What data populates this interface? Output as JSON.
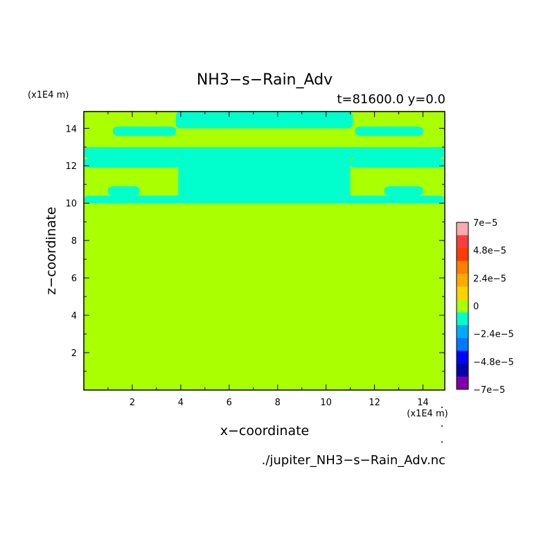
{
  "chart_data": {
    "type": "heatmap",
    "title": "NH3−s−Rain_Adv",
    "subtitle": "t=81600.0 y=0.0",
    "xlabel": "x−coordinate",
    "ylabel": "z−coordinate",
    "x_unit": "(x1E4 m)",
    "y_unit": "(x1E4 m)",
    "source_file": "./jupiter_NH3−s−Rain_Adv.nc",
    "xlim": [
      0,
      14.9
    ],
    "ylim": [
      0,
      14.9
    ],
    "x_ticks": [
      2,
      4,
      6,
      8,
      10,
      12,
      14
    ],
    "y_ticks": [
      2,
      4,
      6,
      8,
      10,
      12,
      14
    ],
    "grid": false,
    "background_color": "#aaff00",
    "colorbar": {
      "labels": [
        "7e−5",
        "4.8e−5",
        "2.4e−5",
        "0",
        "−2.4e−5",
        "−4.8e−5",
        "−7e−5"
      ],
      "colors_top_to_bottom": [
        "#ffaaaa",
        "#ff3c3c",
        "#ff3c00",
        "#ff7f00",
        "#ffaa00",
        "#ffd200",
        "#aaff00",
        "#00ffcc",
        "#00aaff",
        "#0078ff",
        "#0000ff",
        "#0000aa",
        "#7f00aa"
      ]
    },
    "regions": [
      {
        "value_class": "slightly negative",
        "color": "#00ffcc",
        "x": [
          3.9,
          11.0
        ],
        "z": [
          10.2,
          12.9
        ]
      },
      {
        "value_class": "slightly negative",
        "color": "#00ffcc",
        "x": [
          3.8,
          11.1
        ],
        "z": [
          14.0,
          14.9
        ]
      },
      {
        "value_class": "slightly negative",
        "color": "#00ffcc",
        "x": [
          1.2,
          3.8
        ],
        "z": [
          13.6,
          14.1
        ]
      },
      {
        "value_class": "slightly negative",
        "color": "#00ffcc",
        "x": [
          11.2,
          14.0
        ],
        "z": [
          13.6,
          14.1
        ]
      },
      {
        "value_class": "slightly negative",
        "color": "#00ffcc",
        "x": [
          0,
          14.9
        ],
        "z": [
          12.4,
          13.0
        ]
      },
      {
        "value_class": "slightly negative",
        "color": "#00ffcc",
        "x": [
          0,
          4.0
        ],
        "z": [
          11.9,
          12.4
        ]
      },
      {
        "value_class": "slightly negative",
        "color": "#00ffcc",
        "x": [
          11.0,
          14.9
        ],
        "z": [
          11.9,
          12.4
        ]
      },
      {
        "value_class": "slightly negative",
        "color": "#00ffcc",
        "x": [
          1.0,
          2.3
        ],
        "z": [
          10.4,
          10.9
        ]
      },
      {
        "value_class": "slightly negative",
        "color": "#00ffcc",
        "x": [
          12.4,
          14.0
        ],
        "z": [
          10.4,
          10.9
        ]
      },
      {
        "value_class": "slightly negative",
        "color": "#00ffcc",
        "x": [
          0,
          14.9
        ],
        "z": [
          10.0,
          10.4
        ]
      }
    ]
  }
}
